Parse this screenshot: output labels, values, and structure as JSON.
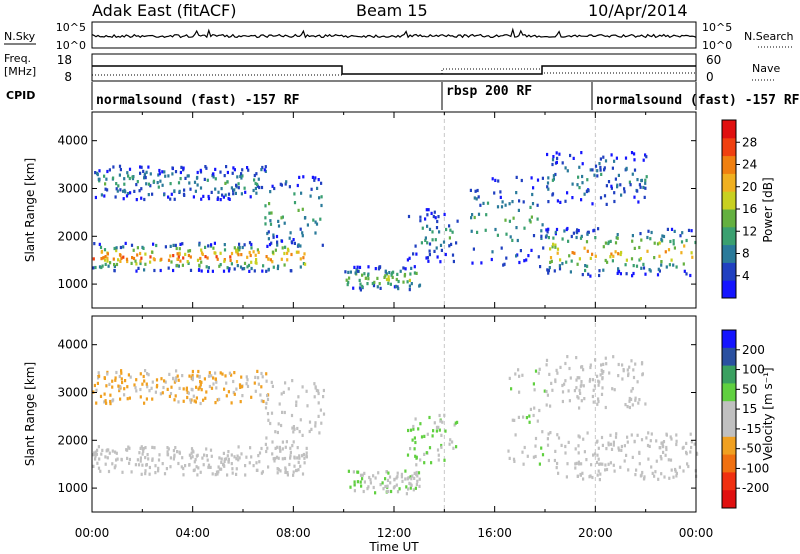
{
  "header": {
    "station": "Adak East (fitACF)",
    "beam": "Beam 15",
    "date": "10/Apr/2014"
  },
  "side_labels": {
    "nsky": "N.Sky",
    "freq_line1": "Freq.",
    "freq_line2": "[MHz]",
    "cpid": "CPID",
    "nsearch": "N.Search",
    "nave": "Nave"
  },
  "strip_ticks": {
    "noise_left": [
      "10^5",
      "10^0"
    ],
    "noise_right": [
      "10^5",
      "10^0"
    ],
    "freq_left": [
      "18",
      "8"
    ],
    "nave_right": [
      "60",
      "0"
    ]
  },
  "cpid_modes": [
    {
      "label": "normalsound (fast) -157 RF",
      "start": 0,
      "end": 14
    },
    {
      "label": "rbsp 200 RF",
      "start": 14,
      "end": 20
    },
    {
      "label": "normalsound (fast) -157 RF",
      "start": 20,
      "end": 24
    }
  ],
  "power_colorbar": {
    "title": "Power [dB]",
    "ticks": [
      "4",
      "8",
      "12",
      "16",
      "20",
      "24",
      "28"
    ],
    "colors": [
      "#1515ff",
      "#2040c0",
      "#2a7a9a",
      "#3aa070",
      "#64b040",
      "#c8d020",
      "#f0b020",
      "#f08010",
      "#f04010",
      "#e01010"
    ]
  },
  "velocity_colorbar": {
    "title": "Velocity [m s⁻¹]",
    "ticks": [
      "200",
      "100",
      "50",
      "15",
      "-15",
      "-50",
      "-100",
      "-200"
    ],
    "colors": [
      "#1515ff",
      "#2a50a0",
      "#3aa060",
      "#60d040",
      "#c0c0c0",
      "#c0c0c0",
      "#f0a020",
      "#f07010",
      "#f03010",
      "#e01010"
    ]
  },
  "chart_data": [
    {
      "type": "heatmap",
      "panel": "power",
      "ylabel": "Slant Range [km]",
      "xlim": [
        0,
        24
      ],
      "ylim": [
        500,
        4600
      ],
      "yticks": [
        "1000",
        "2000",
        "3000",
        "4000"
      ],
      "xticks": [
        "00:00",
        "04:00",
        "08:00",
        "12:00",
        "16:00",
        "20:00",
        "00:00"
      ],
      "features": [
        {
          "t": [
            0.0,
            8.5
          ],
          "range": [
            1300,
            1900
          ],
          "level": 0.85
        },
        {
          "t": [
            0.0,
            7.0
          ],
          "range": [
            2800,
            3500
          ],
          "level": 0.3
        },
        {
          "t": [
            6.8,
            9.2
          ],
          "range": [
            1800,
            3300
          ],
          "level": 0.4
        },
        {
          "t": [
            10.0,
            13.0
          ],
          "range": [
            900,
            1400
          ],
          "level": 0.55
        },
        {
          "t": [
            12.5,
            14.5
          ],
          "range": [
            1500,
            2600
          ],
          "level": 0.3
        },
        {
          "t": [
            15.0,
            18.0
          ],
          "range": [
            1400,
            3300
          ],
          "level": 0.35
        },
        {
          "t": [
            18.0,
            24.0
          ],
          "range": [
            1200,
            2200
          ],
          "level": 0.7
        },
        {
          "t": [
            18.0,
            22.0
          ],
          "range": [
            2700,
            3800
          ],
          "level": 0.25
        }
      ]
    },
    {
      "type": "heatmap",
      "panel": "velocity",
      "ylabel": "Slant Range [km]",
      "xlabel": "Time UT",
      "xlim": [
        0,
        24
      ],
      "ylim": [
        500,
        4600
      ],
      "yticks": [
        "1000",
        "2000",
        "3000",
        "4000"
      ],
      "xticks": [
        "00:00",
        "04:00",
        "08:00",
        "12:00",
        "16:00",
        "20:00",
        "00:00"
      ],
      "features": [
        {
          "t": [
            0.0,
            8.5
          ],
          "range": [
            1300,
            1900
          ],
          "velocity": 0
        },
        {
          "t": [
            0.0,
            7.0
          ],
          "range": [
            2800,
            3500
          ],
          "velocity": -60
        },
        {
          "t": [
            6.8,
            9.2
          ],
          "range": [
            1800,
            3300
          ],
          "velocity": -20
        },
        {
          "t": [
            10.0,
            13.0
          ],
          "range": [
            900,
            1400
          ],
          "velocity": 40
        },
        {
          "t": [
            12.5,
            14.5
          ],
          "range": [
            1500,
            2600
          ],
          "velocity": 60
        },
        {
          "t": [
            16.5,
            18.0
          ],
          "range": [
            1500,
            3600
          ],
          "velocity": 40
        },
        {
          "t": [
            18.0,
            24.0
          ],
          "range": [
            1200,
            2200
          ],
          "velocity": 0
        },
        {
          "t": [
            18.0,
            22.0
          ],
          "range": [
            2700,
            3800
          ],
          "velocity": -20
        }
      ]
    }
  ]
}
